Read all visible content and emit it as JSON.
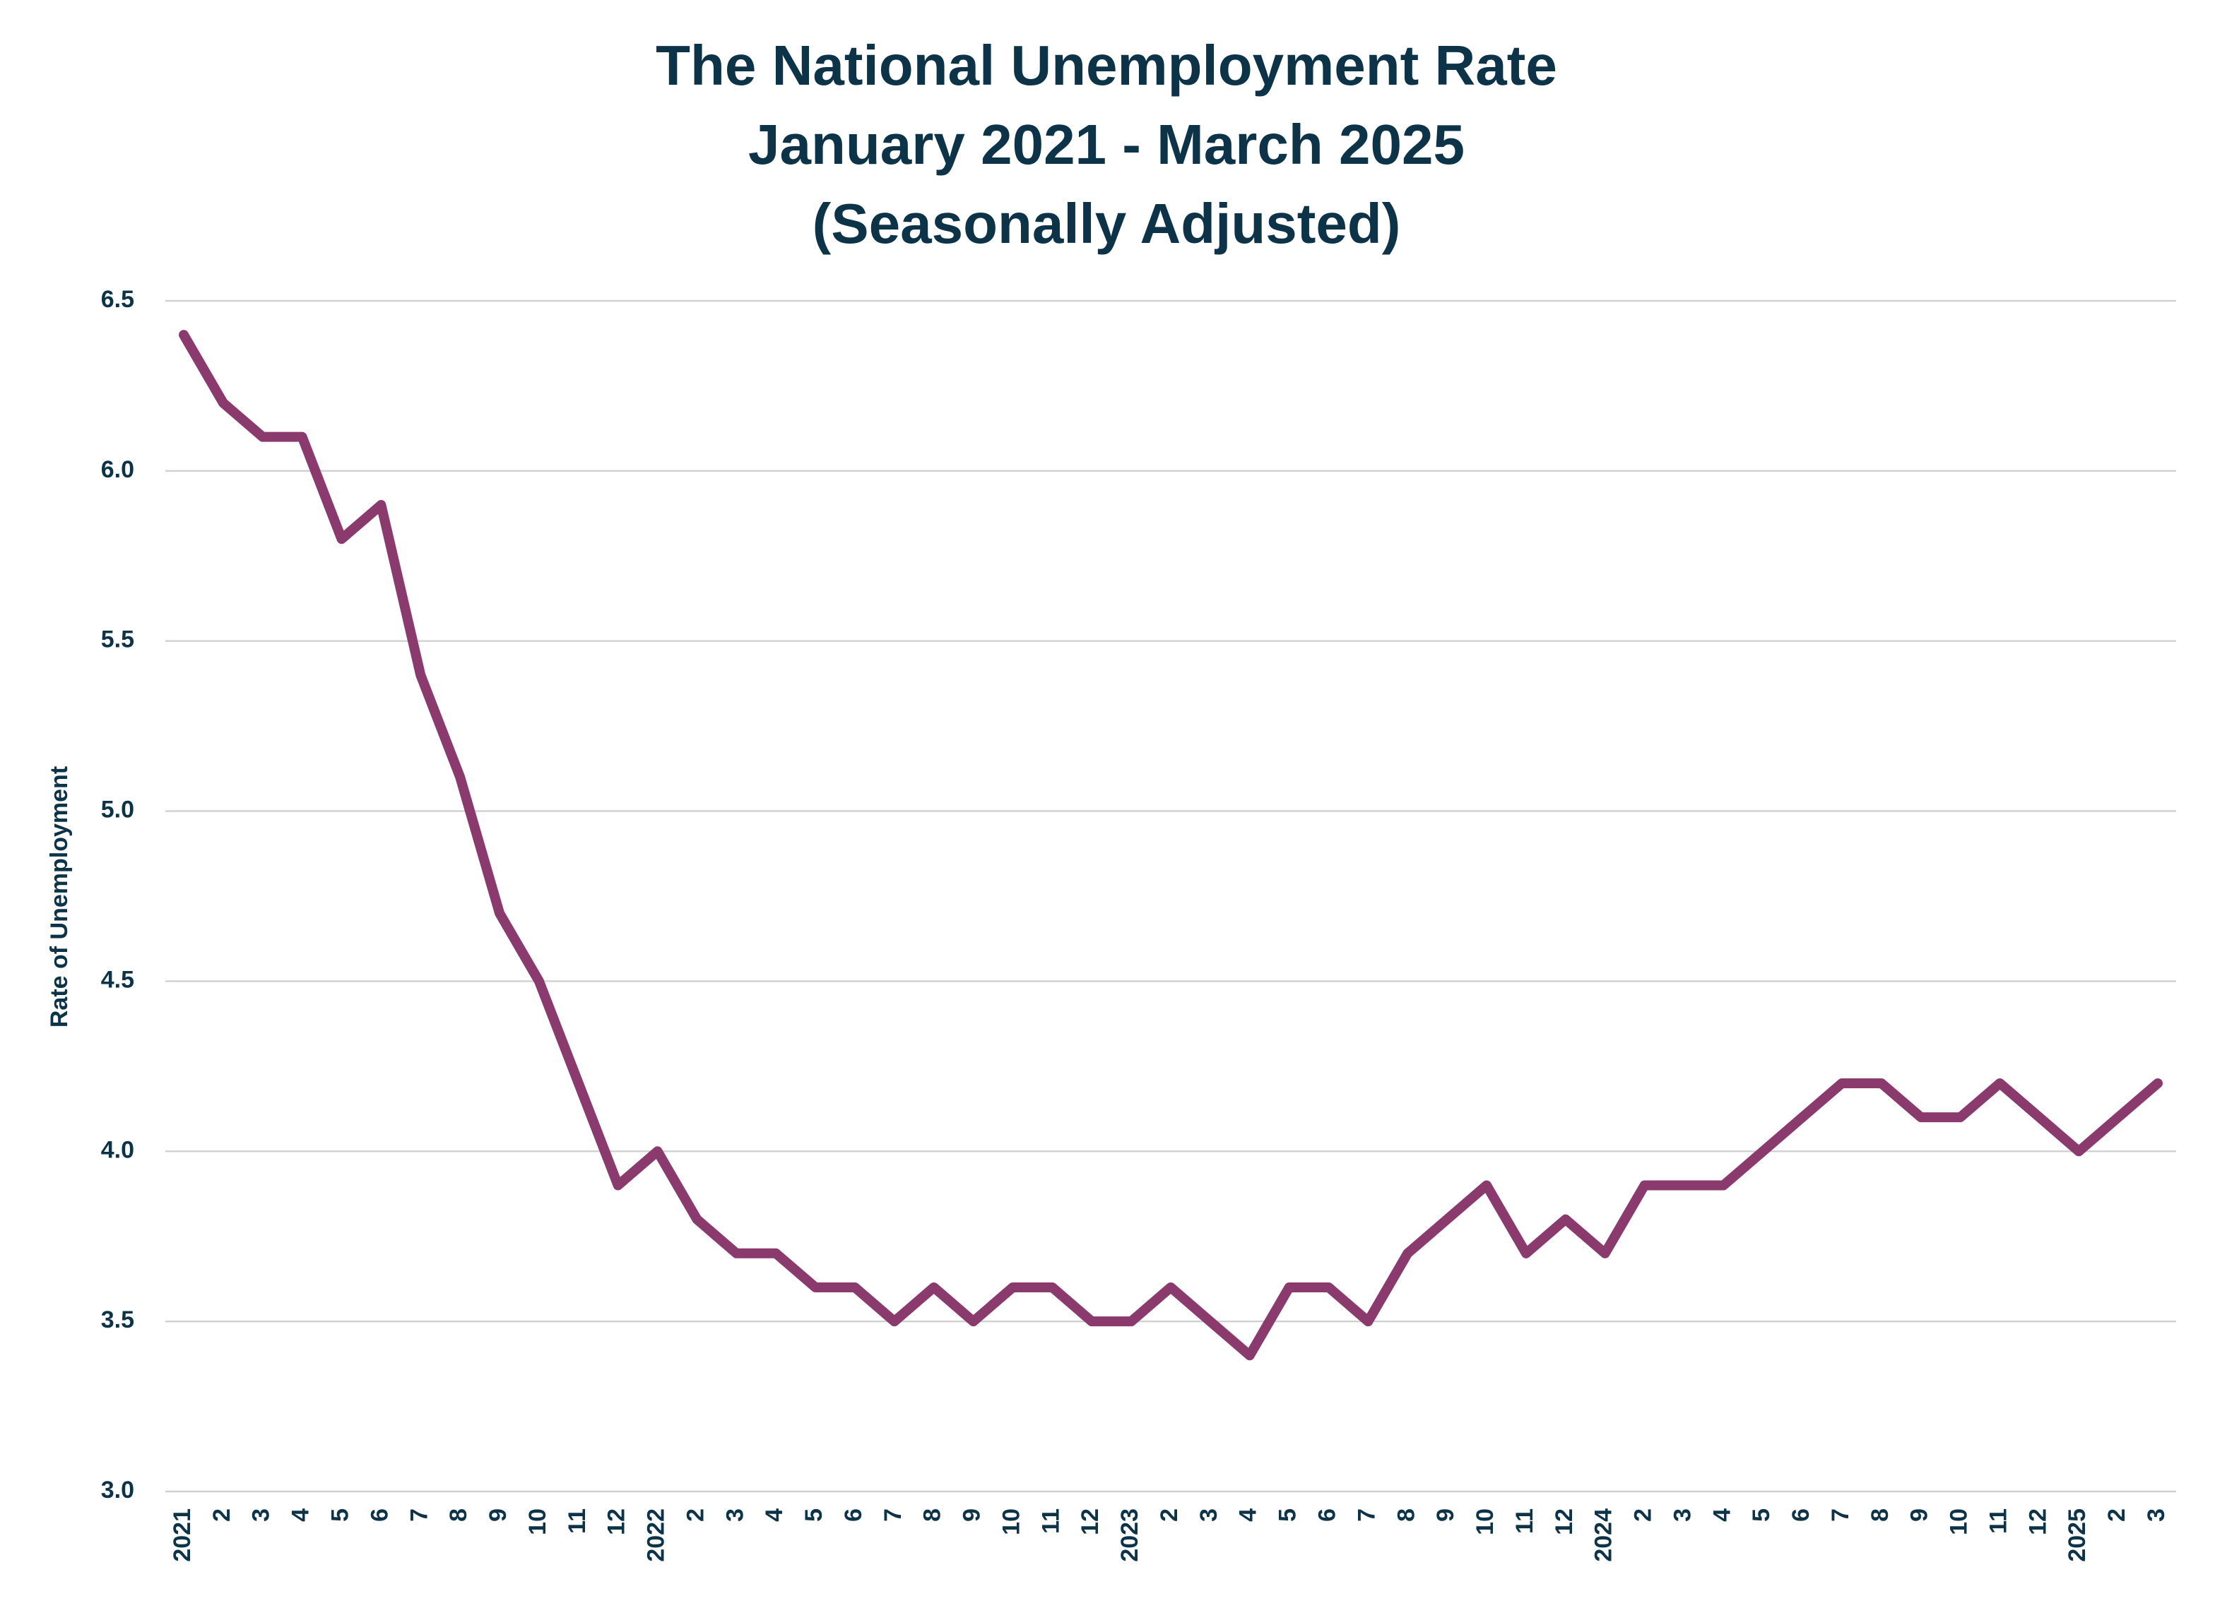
{
  "chart_data": {
    "type": "line",
    "title": [
      "The National Unemployment Rate",
      "January 2021 - March 2025",
      "(Seasonally Adjusted)"
    ],
    "y_label": "Rate of Unemployment",
    "categories": [
      "2021",
      "2",
      "3",
      "4",
      "5",
      "6",
      "7",
      "8",
      "9",
      "10",
      "11",
      "12",
      "2022",
      "2",
      "3",
      "4",
      "5",
      "6",
      "7",
      "8",
      "9",
      "10",
      "11",
      "12",
      "2023",
      "2",
      "3",
      "4",
      "5",
      "6",
      "7",
      "8",
      "9",
      "10",
      "11",
      "12",
      "2024",
      "2",
      "3",
      "4",
      "5",
      "6",
      "7",
      "8",
      "9",
      "10",
      "11",
      "12",
      "2025",
      "2",
      "3"
    ],
    "series": [
      {
        "name": "Rate of Unemployment",
        "color": "#8b3a6e",
        "values": [
          6.4,
          6.2,
          6.1,
          6.1,
          5.8,
          5.9,
          5.4,
          5.1,
          4.7,
          4.5,
          4.2,
          3.9,
          4.0,
          3.8,
          3.7,
          3.7,
          3.6,
          3.6,
          3.5,
          3.6,
          3.5,
          3.6,
          3.6,
          3.5,
          3.5,
          3.6,
          3.5,
          3.4,
          3.6,
          3.6,
          3.5,
          3.7,
          3.8,
          3.9,
          3.7,
          3.8,
          3.7,
          3.9,
          3.9,
          3.9,
          4.0,
          4.1,
          4.2,
          4.2,
          4.1,
          4.1,
          4.2,
          4.1,
          4.0,
          4.1,
          4.2
        ]
      }
    ],
    "ylim": [
      3,
      6.5
    ],
    "yticks": [
      {
        "value": 3,
        "label": "3.0"
      },
      3.5,
      {
        "value": 4,
        "label": "4.0"
      },
      4.5,
      {
        "value": 5,
        "label": "5.0"
      },
      5.5,
      {
        "value": 6,
        "label": "6.0"
      },
      6.5
    ],
    "grid": true
  }
}
